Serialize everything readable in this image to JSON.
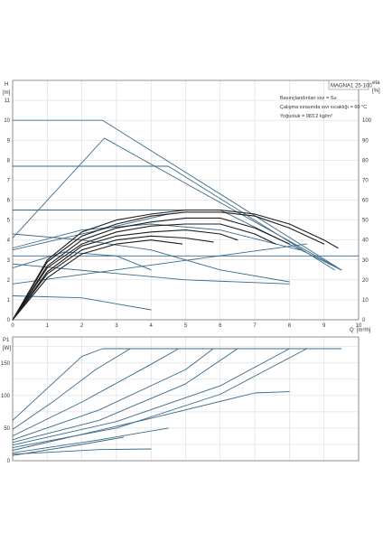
{
  "chart_data": [
    {
      "id": "head",
      "type": "line",
      "title": "MAGNA1 25-100",
      "notes": [
        "Basınçlandırılan sıvı = Su",
        "Çalışma sırasında sıvı sıcaklığı = 60 °C",
        "Yoğunluk = 983.2 kg/m³"
      ],
      "ylabel": "H",
      "yunit": "[m]",
      "y2label": "eta",
      "y2unit": "[%]",
      "xlabel": "Q",
      "xunit": "[m³/h]",
      "xlim": [
        0,
        10
      ],
      "ylim": [
        0,
        12
      ],
      "y2lim": [
        0,
        120
      ],
      "xticks": [
        "0",
        "1",
        "2",
        "3",
        "4",
        "5",
        "6",
        "7",
        "8",
        "9",
        "10"
      ],
      "yticks": [
        "0",
        "1",
        "2",
        "3",
        "4",
        "5",
        "6",
        "7",
        "8",
        "9",
        "10",
        "11"
      ],
      "y2ticks": [
        "0",
        "10",
        "20",
        "30",
        "40",
        "50",
        "60",
        "70",
        "80",
        "90",
        "100"
      ],
      "grid": true,
      "colors": {
        "pump": "#3a6a88",
        "eta": "#1e1e1e",
        "grid": "#d4d4d4",
        "axis": "#666666"
      },
      "series": [
        {
          "kind": "pump",
          "x": [
            0,
            2.6,
            9.5
          ],
          "y": [
            10.0,
            10.0,
            2.5
          ]
        },
        {
          "kind": "pump",
          "x": [
            0,
            4.5,
            9.3
          ],
          "y": [
            7.7,
            7.7,
            2.5
          ]
        },
        {
          "kind": "pump",
          "x": [
            0,
            6.0,
            9.5
          ],
          "y": [
            5.5,
            5.5,
            2.5
          ]
        },
        {
          "kind": "pump",
          "x": [
            0,
            10.0
          ],
          "y": [
            3.2,
            3.2
          ]
        },
        {
          "kind": "pump",
          "x": [
            0,
            2.65
          ],
          "y": [
            4.1,
            9.1
          ]
        },
        {
          "kind": "pump",
          "x": [
            2.65,
            9.5
          ],
          "y": [
            9.1,
            2.5
          ]
        },
        {
          "kind": "pump",
          "x": [
            0,
            8.5
          ],
          "y": [
            1.8,
            3.8
          ]
        },
        {
          "kind": "pump",
          "x": [
            0,
            4.5
          ],
          "y": [
            3.5,
            5.3
          ]
        },
        {
          "kind": "pump",
          "x": [
            0,
            2.0,
            4.0,
            6.0,
            8.3
          ],
          "y": [
            3.6,
            4.5,
            4.8,
            4.5,
            3.5
          ]
        },
        {
          "kind": "pump",
          "x": [
            0,
            1.5,
            3.0,
            4.0
          ],
          "y": [
            2.6,
            3.4,
            3.2,
            2.5
          ]
        },
        {
          "kind": "pump",
          "x": [
            0,
            2.5,
            5.0,
            8.0
          ],
          "y": [
            2.8,
            2.4,
            2.0,
            1.8
          ]
        },
        {
          "kind": "pump",
          "x": [
            0,
            2.0,
            4.0
          ],
          "y": [
            1.2,
            1.1,
            0.5
          ]
        },
        {
          "kind": "pump",
          "x": [
            0,
            2.0,
            4.0,
            6.0,
            8.0
          ],
          "y": [
            4.3,
            4.0,
            3.5,
            2.5,
            1.9
          ]
        },
        {
          "kind": "eta",
          "x": [
            0,
            1,
            2,
            3,
            4,
            5,
            6,
            7,
            8,
            9,
            9.4
          ],
          "y": [
            0,
            3.0,
            4.4,
            5.0,
            5.3,
            5.5,
            5.5,
            5.3,
            4.8,
            4.0,
            3.6
          ]
        },
        {
          "kind": "eta",
          "x": [
            0,
            1,
            2,
            3,
            4,
            5,
            6,
            7,
            8,
            9
          ],
          "y": [
            0,
            2.9,
            4.2,
            4.8,
            5.2,
            5.4,
            5.4,
            5.2,
            4.6,
            3.8
          ]
        },
        {
          "kind": "eta",
          "x": [
            0,
            1,
            2,
            3,
            4,
            5,
            6,
            7,
            8
          ],
          "y": [
            0,
            2.7,
            4.0,
            4.6,
            4.9,
            5.1,
            5.1,
            4.6,
            3.8
          ]
        },
        {
          "kind": "eta",
          "x": [
            0,
            1,
            2,
            3,
            4,
            5,
            6,
            7,
            7.6
          ],
          "y": [
            0,
            2.6,
            3.8,
            4.4,
            4.7,
            4.8,
            4.8,
            4.3,
            3.8
          ]
        },
        {
          "kind": "eta",
          "x": [
            0,
            1,
            2,
            3,
            4,
            5,
            6,
            6.5
          ],
          "y": [
            0,
            2.4,
            3.7,
            4.2,
            4.4,
            4.5,
            4.3,
            4.0
          ]
        },
        {
          "kind": "eta",
          "x": [
            0,
            1,
            2,
            3,
            4,
            5,
            5.8
          ],
          "y": [
            0,
            2.3,
            3.5,
            4.0,
            4.2,
            4.1,
            3.9
          ]
        },
        {
          "kind": "eta",
          "x": [
            0,
            1,
            2,
            3,
            4,
            4.9
          ],
          "y": [
            0,
            2.1,
            3.3,
            3.8,
            4.0,
            3.8
          ]
        }
      ]
    },
    {
      "id": "power",
      "type": "line",
      "ylabel": "P1",
      "yunit": "[W]",
      "xlim": [
        0,
        10
      ],
      "ylim": [
        0,
        190
      ],
      "yticks": [
        "0",
        "50",
        "100",
        "150"
      ],
      "grid": true,
      "colors": {
        "pump": "#3a6a88",
        "grid": "#d4d4d4",
        "axis": "#666666"
      },
      "series": [
        {
          "kind": "pump",
          "x": [
            0,
            2.0,
            2.6,
            9.5
          ],
          "y": [
            62,
            160,
            172,
            172
          ]
        },
        {
          "kind": "pump",
          "x": [
            0,
            1.2,
            2.4,
            3.4
          ],
          "y": [
            48,
            92,
            140,
            172
          ]
        },
        {
          "kind": "pump",
          "x": [
            0,
            2.0,
            4.0,
            4.8
          ],
          "y": [
            38,
            90,
            148,
            172
          ]
        },
        {
          "kind": "pump",
          "x": [
            0,
            2.5,
            5.0,
            5.8
          ],
          "y": [
            32,
            78,
            140,
            172
          ]
        },
        {
          "kind": "pump",
          "x": [
            0,
            2.5,
            5.0,
            6.5
          ],
          "y": [
            28,
            62,
            118,
            172
          ]
        },
        {
          "kind": "pump",
          "x": [
            0,
            3.0,
            6.0,
            8.0
          ],
          "y": [
            24,
            60,
            115,
            172
          ]
        },
        {
          "kind": "pump",
          "x": [
            0,
            3.0,
            6.0,
            8.5
          ],
          "y": [
            20,
            50,
            102,
            172
          ]
        },
        {
          "kind": "pump",
          "x": [
            0,
            4.0,
            7.0,
            8.0
          ],
          "y": [
            16,
            65,
            104,
            106
          ]
        },
        {
          "kind": "pump",
          "x": [
            0,
            2.5,
            4.5
          ],
          "y": [
            12,
            32,
            50
          ]
        },
        {
          "kind": "pump",
          "x": [
            0,
            2.0,
            3.2
          ],
          "y": [
            8,
            25,
            36
          ]
        },
        {
          "kind": "pump",
          "x": [
            0,
            2.5,
            4.0
          ],
          "y": [
            10,
            17,
            18
          ]
        }
      ]
    }
  ]
}
